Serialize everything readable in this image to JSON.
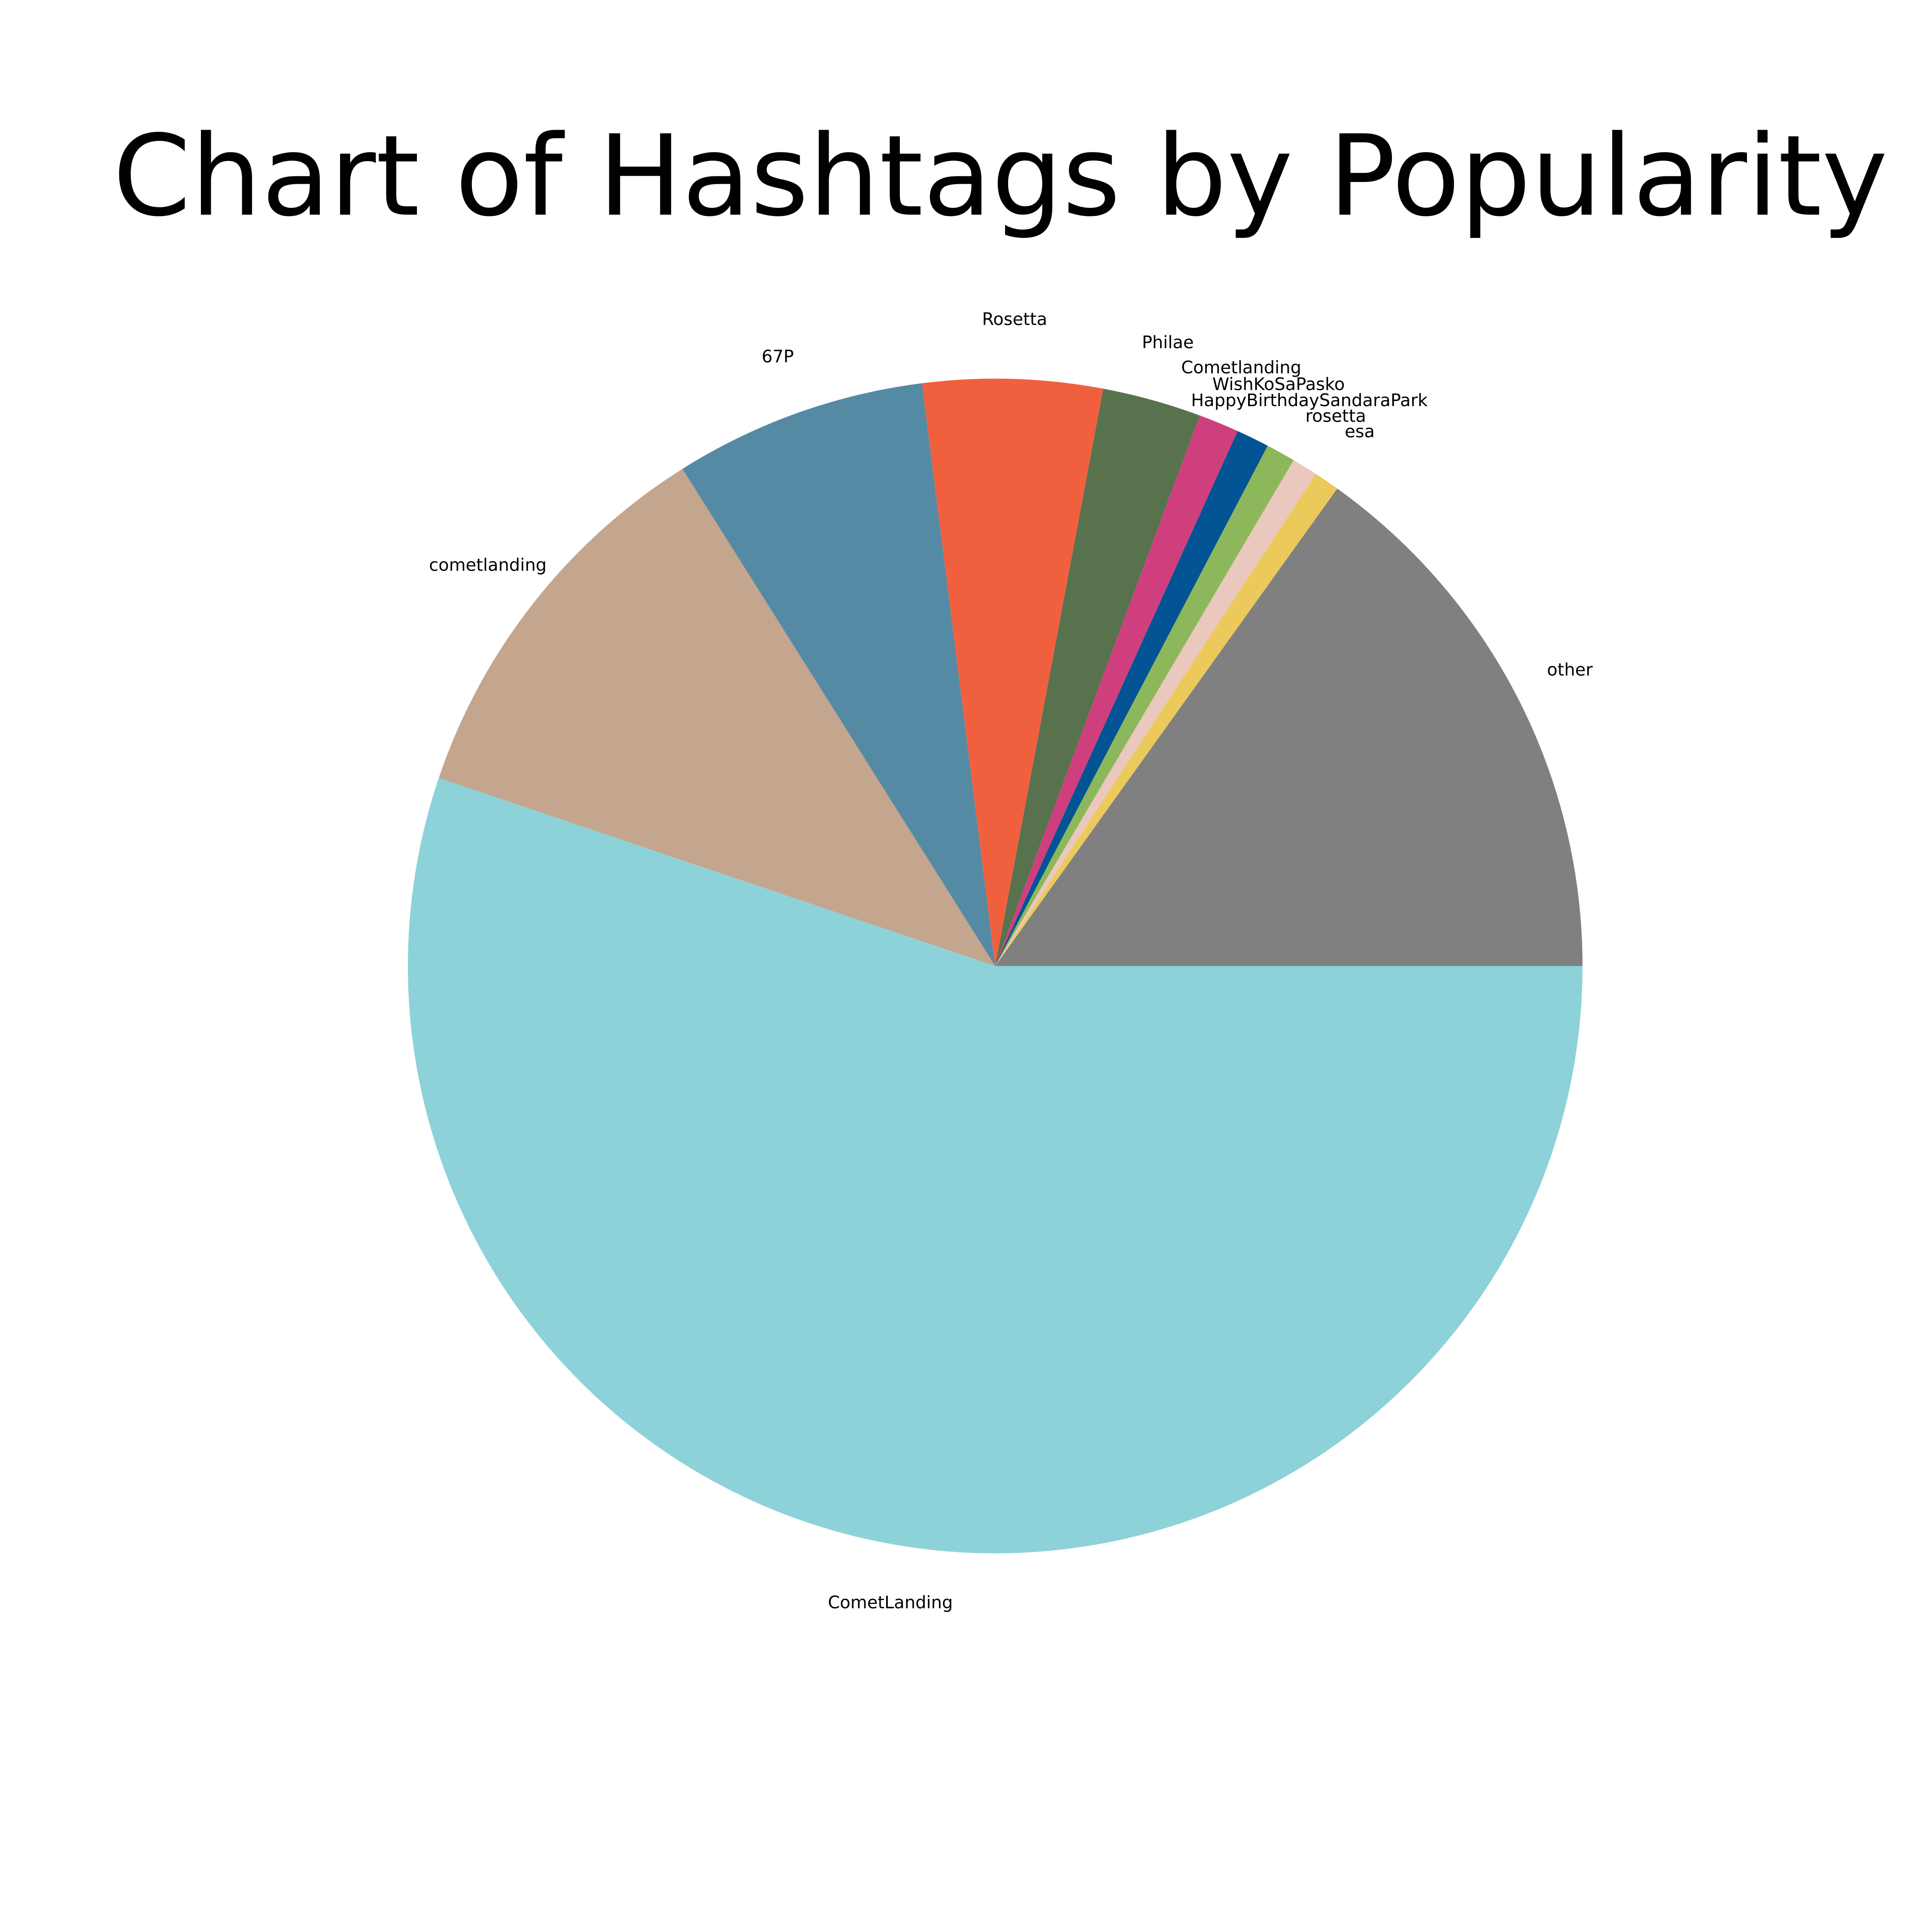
{
  "chart_data": {
    "type": "pie",
    "title": "Chart of Hashtags by Popularity",
    "start_angle_deg": 0,
    "direction": "clockwise",
    "slices": [
      {
        "label": "CometLanding",
        "value": 54.8,
        "color": "#8dd2d8"
      },
      {
        "label": "cometlanding",
        "value": 10.8,
        "color": "#c4a58e"
      },
      {
        "label": "67P",
        "value": 6.9,
        "color": "#558aa5"
      },
      {
        "label": "Rosetta",
        "value": 4.9,
        "color": "#f0603e"
      },
      {
        "label": "Philae",
        "value": 2.7,
        "color": "#58724e"
      },
      {
        "label": "Cometlanding",
        "value": 1.1,
        "color": "#d03f7d"
      },
      {
        "label": "WishKoSaPasko",
        "value": 0.9,
        "color": "#035495"
      },
      {
        "label": "HappyBirthdaySandaraPark",
        "value": 0.8,
        "color": "#8db75b"
      },
      {
        "label": "rosetta",
        "value": 0.7,
        "color": "#eac8bd"
      },
      {
        "label": "esa",
        "value": 0.7,
        "color": "#ecc95b"
      },
      {
        "label": "other",
        "value": 15.0,
        "color": "#808080"
      }
    ]
  }
}
